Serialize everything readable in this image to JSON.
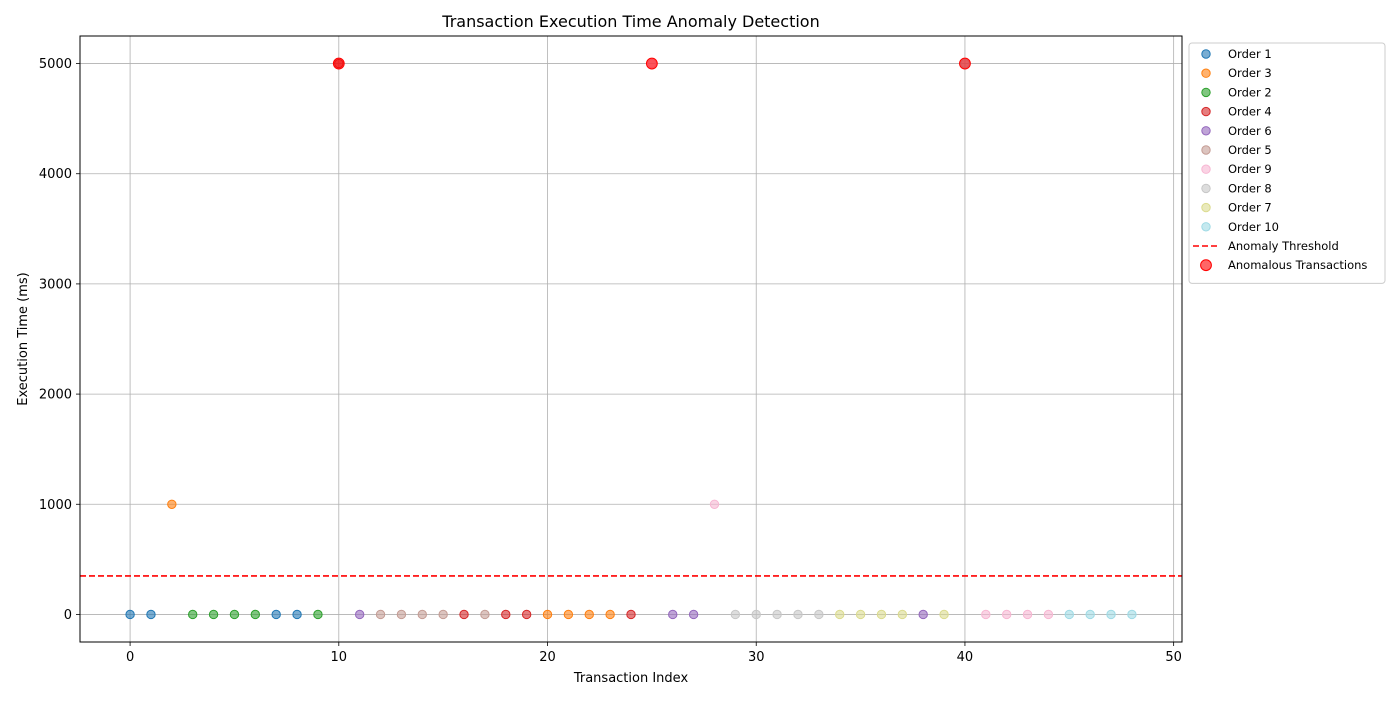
{
  "chart_data": {
    "type": "scatter",
    "title": "Transaction Execution Time Anomaly Detection",
    "xlabel": "Transaction Index",
    "ylabel": "Execution Time (ms)",
    "xlim": [
      -2.4,
      50.4
    ],
    "ylim": [
      -250,
      5250
    ],
    "xticks": [
      0,
      10,
      20,
      30,
      40,
      50
    ],
    "yticks": [
      0,
      1000,
      2000,
      3000,
      4000,
      5000
    ],
    "grid": true,
    "legend_position": "outside-upper-right",
    "series": [
      {
        "name": "Order 1",
        "color": "#1f77b4",
        "points": [
          [
            0,
            0
          ],
          [
            1,
            0
          ],
          [
            7,
            0
          ],
          [
            8,
            0
          ]
        ]
      },
      {
        "name": "Order 3",
        "color": "#ff7f0e",
        "points": [
          [
            2,
            1000
          ],
          [
            20,
            0
          ],
          [
            21,
            0
          ],
          [
            22,
            0
          ],
          [
            23,
            0
          ]
        ]
      },
      {
        "name": "Order 2",
        "color": "#2ca02c",
        "points": [
          [
            3,
            0
          ],
          [
            4,
            0
          ],
          [
            5,
            0
          ],
          [
            6,
            0
          ],
          [
            9,
            0
          ]
        ]
      },
      {
        "name": "Order 4",
        "color": "#d62728",
        "points": [
          [
            10,
            5000
          ],
          [
            16,
            0
          ],
          [
            18,
            0
          ],
          [
            19,
            0
          ],
          [
            24,
            0
          ]
        ]
      },
      {
        "name": "Order 6",
        "color": "#9467bd",
        "points": [
          [
            11,
            0
          ],
          [
            26,
            0
          ],
          [
            27,
            0
          ],
          [
            38,
            0
          ]
        ]
      },
      {
        "name": "Order 5",
        "color": "#c49c94",
        "points": [
          [
            12,
            0
          ],
          [
            13,
            0
          ],
          [
            14,
            0
          ],
          [
            15,
            0
          ],
          [
            17,
            0
          ]
        ]
      },
      {
        "name": "Order 9",
        "color": "#f7b6d2",
        "points": [
          [
            25,
            5000
          ],
          [
            28,
            1000
          ],
          [
            41,
            0
          ],
          [
            42,
            0
          ],
          [
            43,
            0
          ],
          [
            44,
            0
          ]
        ]
      },
      {
        "name": "Order 8",
        "color": "#c7c7c7",
        "points": [
          [
            29,
            0
          ],
          [
            30,
            0
          ],
          [
            31,
            0
          ],
          [
            32,
            0
          ],
          [
            33,
            0
          ]
        ]
      },
      {
        "name": "Order 7",
        "color": "#dbdb8d",
        "points": [
          [
            34,
            0
          ],
          [
            35,
            0
          ],
          [
            36,
            0
          ],
          [
            37,
            0
          ],
          [
            39,
            0
          ]
        ]
      },
      {
        "name": "Order 10",
        "color": "#9edae5",
        "points": [
          [
            40,
            5000
          ],
          [
            45,
            0
          ],
          [
            46,
            0
          ],
          [
            47,
            0
          ],
          [
            48,
            0
          ]
        ]
      }
    ],
    "threshold": {
      "name": "Anomaly Threshold",
      "value": 350,
      "color": "#ff0000"
    },
    "anomalies": {
      "name": "Anomalous Transactions",
      "color": "#ff0000",
      "points": [
        [
          10,
          5000
        ],
        [
          25,
          5000
        ],
        [
          40,
          5000
        ]
      ]
    }
  }
}
